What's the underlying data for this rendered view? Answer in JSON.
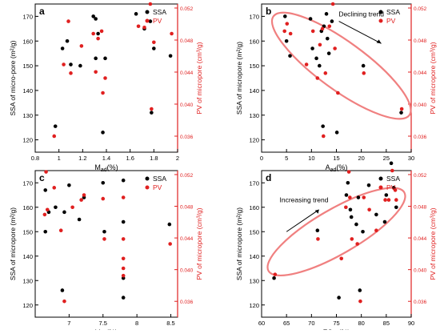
{
  "colors": {
    "ssa": "#000000",
    "pv": "#e02020",
    "ellipse": "#f08080",
    "axis": "#000000",
    "right_axis": "#e02020"
  },
  "chart_data": [
    {
      "panel": "a",
      "type": "scatter",
      "xlabel": "Mad(%)",
      "ylabel": "SSA of micro-pore (m²/g)",
      "y2label": "PV of micropore (cm³/g)",
      "xlim": [
        0.8,
        2.0
      ],
      "xticks": [
        0.8,
        1.0,
        1.2,
        1.4,
        1.6,
        1.8,
        2.0
      ],
      "ylim": [
        115,
        175
      ],
      "yticks": [
        120,
        130,
        140,
        150,
        160,
        170
      ],
      "y2lim": [
        0.034,
        0.0525
      ],
      "y2ticks": [
        0.036,
        0.04,
        0.044,
        0.048,
        0.052
      ],
      "legend": [
        "SSA",
        "PV"
      ],
      "legend_position": "top-right",
      "series": [
        {
          "name": "SSA",
          "axis": "left",
          "points": [
            [
              0.97,
              125.5
            ],
            [
              1.03,
              157
            ],
            [
              1.07,
              160
            ],
            [
              1.1,
              150.5
            ],
            [
              1.18,
              150
            ],
            [
              1.29,
              170
            ],
            [
              1.31,
              169
            ],
            [
              1.31,
              153
            ],
            [
              1.33,
              163
            ],
            [
              1.37,
              123
            ],
            [
              1.39,
              153
            ],
            [
              1.65,
              171
            ],
            [
              1.72,
              165
            ],
            [
              1.77,
              168
            ],
            [
              1.78,
              131
            ],
            [
              1.8,
              157
            ],
            [
              1.94,
              154
            ]
          ]
        },
        {
          "name": "PV",
          "axis": "left",
          "points": [
            [
              0.96,
              121.5
            ],
            [
              1.04,
              150.5
            ],
            [
              1.08,
              168
            ],
            [
              1.1,
              147
            ],
            [
              1.19,
              158
            ],
            [
              1.29,
              163
            ],
            [
              1.31,
              147.5
            ],
            [
              1.33,
              161
            ],
            [
              1.37,
              139
            ],
            [
              1.39,
              145
            ],
            [
              1.36,
              164
            ],
            [
              1.67,
              166
            ],
            [
              1.72,
              165.5
            ],
            [
              1.78,
              132.5
            ],
            [
              1.77,
              175
            ],
            [
              1.8,
              159.5
            ],
            [
              1.95,
              163
            ]
          ]
        }
      ]
    },
    {
      "panel": "b",
      "type": "scatter",
      "xlabel": "Aad(%)",
      "ylabel": "SSA of micropore (m²/g)",
      "y2label": "PV of micropore (cm³/g)",
      "xlim": [
        0,
        30
      ],
      "xticks": [
        0,
        5,
        10,
        15,
        20,
        25,
        30
      ],
      "ylim": [
        115,
        175
      ],
      "yticks": [
        120,
        130,
        140,
        150,
        160,
        170
      ],
      "y2lim": [
        0.034,
        0.0525
      ],
      "y2ticks": [
        0.036,
        0.04,
        0.044,
        0.048,
        0.052
      ],
      "legend": [
        "SSA",
        "PV"
      ],
      "legend_position": "top-right",
      "annotation": "Declining trend",
      "series": [
        {
          "name": "SSA",
          "axis": "left",
          "points": [
            [
              4.7,
              170
            ],
            [
              5.0,
              160
            ],
            [
              5.7,
              154
            ],
            [
              9.8,
              169
            ],
            [
              10.2,
              157
            ],
            [
              11.0,
              153
            ],
            [
              11.6,
              150
            ],
            [
              12.0,
              164
            ],
            [
              12.3,
              125.5
            ],
            [
              12.5,
              166
            ],
            [
              13.0,
              171
            ],
            [
              13.2,
              161
            ],
            [
              13.5,
              155
            ],
            [
              14.1,
              168
            ],
            [
              15.1,
              123
            ],
            [
              20.4,
              150
            ],
            [
              28.0,
              131
            ]
          ]
        },
        {
          "name": "PV",
          "axis": "left",
          "points": [
            [
              4.6,
              164
            ],
            [
              5.1,
              167
            ],
            [
              5.8,
              163
            ],
            [
              9.0,
              150.5
            ],
            [
              10.3,
              164
            ],
            [
              11.2,
              145
            ],
            [
              11.7,
              158.5
            ],
            [
              12.2,
              165
            ],
            [
              12.4,
              121.5
            ],
            [
              12.8,
              147
            ],
            [
              13.6,
              166
            ],
            [
              14.3,
              175
            ],
            [
              14.7,
              157
            ],
            [
              15.3,
              139
            ],
            [
              20.5,
              147
            ],
            [
              28.1,
              132.5
            ]
          ]
        }
      ]
    },
    {
      "panel": "c",
      "type": "scatter",
      "xlabel": "Vad(%)",
      "ylabel": "SSA of micropore (m²/g)",
      "y2label": "PV of micropore (cm³/g)",
      "xlim": [
        6.5,
        8.6
      ],
      "xticks": [
        7.0,
        7.5,
        8.0,
        8.5
      ],
      "ylim": [
        115,
        175
      ],
      "yticks": [
        120,
        130,
        140,
        150,
        160,
        170
      ],
      "y2lim": [
        0.034,
        0.0525
      ],
      "y2ticks": [
        0.036,
        0.04,
        0.044,
        0.048,
        0.052
      ],
      "legend": [
        "SSA",
        "PV"
      ],
      "legend_position": "top-right",
      "series": [
        {
          "name": "SSA",
          "axis": "left",
          "points": [
            [
              6.65,
              150
            ],
            [
              6.65,
              167
            ],
            [
              6.7,
              158
            ],
            [
              6.8,
              160
            ],
            [
              6.9,
              126
            ],
            [
              6.93,
              158
            ],
            [
              7.0,
              169
            ],
            [
              7.15,
              155
            ],
            [
              7.22,
              164
            ],
            [
              7.5,
              170
            ],
            [
              7.52,
              150
            ],
            [
              7.8,
              171
            ],
            [
              7.8,
              154
            ],
            [
              7.8,
              131
            ],
            [
              7.8,
              123
            ],
            [
              8.48,
              153
            ]
          ]
        },
        {
          "name": "PV",
          "axis": "left",
          "points": [
            [
              6.64,
              157
            ],
            [
              6.66,
              174.5
            ],
            [
              6.68,
              159
            ],
            [
              6.78,
              168
            ],
            [
              6.88,
              150.5
            ],
            [
              6.93,
              121.5
            ],
            [
              7.05,
              160
            ],
            [
              7.18,
              163
            ],
            [
              7.22,
              165
            ],
            [
              7.5,
              163.5
            ],
            [
              7.52,
              147
            ],
            [
              7.8,
              164
            ],
            [
              7.8,
              147
            ],
            [
              7.8,
              139
            ],
            [
              7.8,
              135
            ],
            [
              7.8,
              132
            ],
            [
              8.49,
              145
            ]
          ]
        }
      ]
    },
    {
      "panel": "d",
      "type": "scatter",
      "xlabel": "FCad(%)",
      "ylabel": "SSA of micropore (m²/g)",
      "y2label": "PV of micropore (cm³/g)",
      "xlim": [
        60,
        90
      ],
      "xticks": [
        60,
        65,
        70,
        75,
        80,
        85,
        90
      ],
      "ylim": [
        115,
        175
      ],
      "yticks": [
        120,
        130,
        140,
        150,
        160,
        170
      ],
      "y2lim": [
        0.034,
        0.0525
      ],
      "y2ticks": [
        0.036,
        0.04,
        0.044,
        0.048,
        0.052
      ],
      "legend": [
        "SSA",
        "PV"
      ],
      "legend_position": "top-right",
      "annotation": "Increasing trend",
      "series": [
        {
          "name": "SSA",
          "axis": "left",
          "points": [
            [
              62.5,
              131
            ],
            [
              71.2,
              150.5
            ],
            [
              75.5,
              123
            ],
            [
              77.0,
              165
            ],
            [
              77.3,
              170
            ],
            [
              77.8,
              159
            ],
            [
              78.0,
              156
            ],
            [
              79.0,
              153
            ],
            [
              79.4,
              164
            ],
            [
              79.7,
              126
            ],
            [
              80.3,
              150
            ],
            [
              81.5,
              169
            ],
            [
              83.0,
              157
            ],
            [
              84.7,
              154
            ],
            [
              85.0,
              165
            ],
            [
              86.0,
              178
            ],
            [
              86.5,
              168
            ],
            [
              87.0,
              160
            ]
          ]
        },
        {
          "name": "PV",
          "axis": "left",
          "points": [
            [
              62.7,
              132.5
            ],
            [
              71.3,
              147
            ],
            [
              76.0,
              139
            ],
            [
              76.9,
              160
            ],
            [
              77.5,
              174.5
            ],
            [
              77.7,
              164
            ],
            [
              78.1,
              147
            ],
            [
              79.2,
              145
            ],
            [
              79.8,
              121.5
            ],
            [
              80.5,
              164
            ],
            [
              81.6,
              159
            ],
            [
              83.0,
              150.5
            ],
            [
              84.8,
              163
            ],
            [
              85.5,
              163
            ],
            [
              86.2,
              175
            ],
            [
              86.8,
              167
            ],
            [
              87.0,
              163
            ]
          ]
        }
      ]
    }
  ]
}
